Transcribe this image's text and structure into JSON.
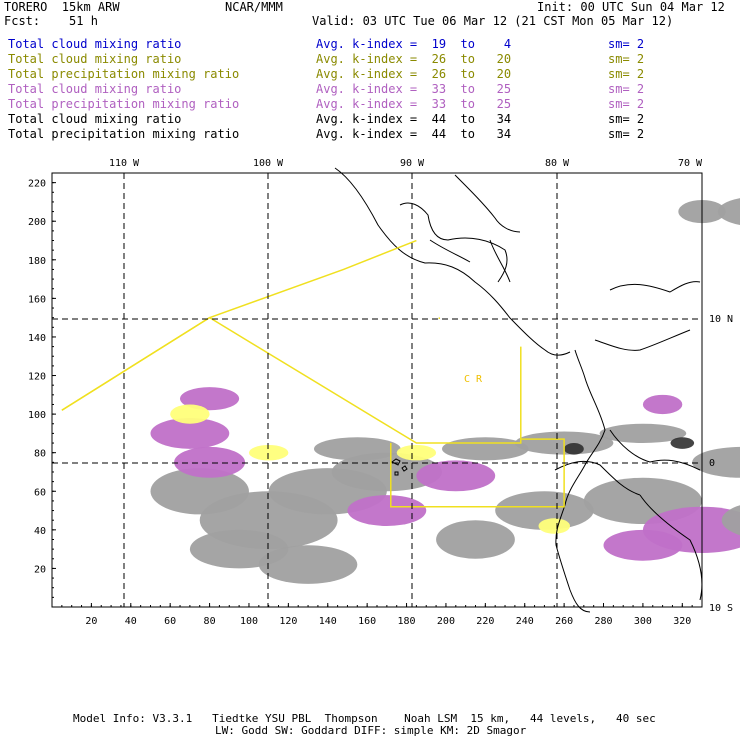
{
  "header": {
    "model": "TORERO  15km ARW",
    "org": "NCAR/MMM",
    "init": "Init: 00 UTC Sun 04 Mar 12",
    "fcst": "Fcst:    51 h",
    "valid": "Valid: 03 UTC Tue 06 Mar 12 (21 CST Mon 05 Mar 12)"
  },
  "legend": [
    {
      "field": "Total cloud mixing ratio",
      "kindex": "Avg. k-index =  19  to    4",
      "sm": "sm= 2",
      "color": "#0000cc"
    },
    {
      "field": "Total cloud mixing ratio",
      "kindex": "Avg. k-index =  26  to   20",
      "sm": "sm= 2",
      "color": "#8a8a00"
    },
    {
      "field": "Total precipitation mixing ratio",
      "kindex": "Avg. k-index =  26  to   20",
      "sm": "sm= 2",
      "color": "#8a8a00"
    },
    {
      "field": "Total cloud mixing ratio",
      "kindex": "Avg. k-index =  33  to   25",
      "sm": "sm= 2",
      "color": "#b060c0"
    },
    {
      "field": "Total precipitation mixing ratio",
      "kindex": "Avg. k-index =  33  to   25",
      "sm": "sm= 2",
      "color": "#b060c0"
    },
    {
      "field": "Total cloud mixing ratio",
      "kindex": "Avg. k-index =  44  to   34",
      "sm": "sm= 2",
      "color": "#000000"
    },
    {
      "field": "Total precipitation mixing ratio",
      "kindex": "Avg. k-index =  44  to   34",
      "sm": "sm= 2",
      "color": "#000000"
    }
  ],
  "map": {
    "lon_labels": [
      "110 W",
      "100 W",
      "90 W",
      "80 W",
      "70 W"
    ],
    "lat_labels": [
      "10 N",
      "0",
      "10 S"
    ],
    "x_ticks": [
      "20",
      "40",
      "60",
      "80",
      "100",
      "120",
      "140",
      "160",
      "180",
      "200",
      "220",
      "240",
      "260",
      "280",
      "300",
      "320"
    ],
    "y_ticks": [
      "20",
      "40",
      "60",
      "80",
      "100",
      "120",
      "140",
      "160",
      "180",
      "200",
      "220"
    ],
    "field_colors": {
      "light": "#ffff7a",
      "medium": "#c070c8",
      "heavy": "#a0a0a0",
      "core": "#303030",
      "flight_track": "#f0e020",
      "grid": "#000000"
    },
    "annotation": "C  R"
  },
  "footer": {
    "line1": "Model Info: V3.3.1   Tiedtke YSU PBL  Thompson    Noah LSM  15 km,   44 levels,   40 sec",
    "line2": "LW: Godd SW: Goddard DIFF: simple KM: 2D Smagor"
  }
}
